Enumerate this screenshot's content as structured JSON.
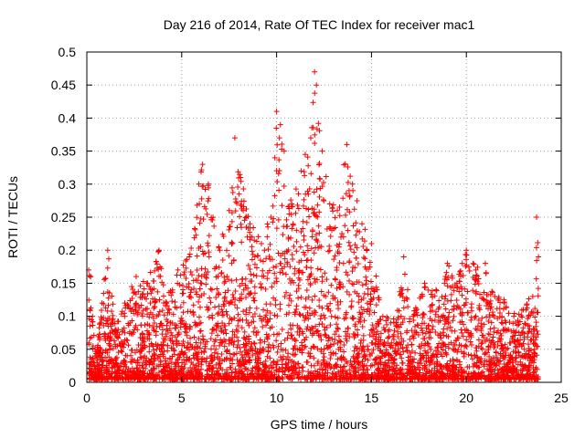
{
  "chart_data": {
    "type": "scatter",
    "title": "Day 216 of 2014, Rate Of TEC Index for receiver mac1",
    "xlabel": "GPS time / hours",
    "ylabel": "ROTI / TECUs",
    "xlim": [
      0,
      25
    ],
    "ylim": [
      0,
      0.5
    ],
    "x_ticks": [
      "0",
      "5",
      "10",
      "15",
      "20",
      "25"
    ],
    "y_ticks": [
      "0",
      "0.05",
      "0.1",
      "0.15",
      "0.2",
      "0.25",
      "0.3",
      "0.35",
      "0.4",
      "0.45",
      "0.5"
    ],
    "grid": true,
    "marker": "+",
    "color": "#ff0000",
    "series": [
      {
        "name": "ROTI",
        "note": "dense scatter; representative envelope samples (x hours, y TECU)",
        "points": [
          [
            0.1,
            0.17
          ],
          [
            0.2,
            0.16
          ],
          [
            0.3,
            0.1
          ],
          [
            0.5,
            0.04
          ],
          [
            0.8,
            0.12
          ],
          [
            1.1,
            0.2
          ],
          [
            1.5,
            0.08
          ],
          [
            2.0,
            0.12
          ],
          [
            2.6,
            0.16
          ],
          [
            3.2,
            0.15
          ],
          [
            3.8,
            0.2
          ],
          [
            4.2,
            0.12
          ],
          [
            4.8,
            0.17
          ],
          [
            5.4,
            0.19
          ],
          [
            5.9,
            0.3
          ],
          [
            6.1,
            0.33
          ],
          [
            6.4,
            0.3
          ],
          [
            7.0,
            0.2
          ],
          [
            7.5,
            0.26
          ],
          [
            7.8,
            0.37
          ],
          [
            8.1,
            0.31
          ],
          [
            8.6,
            0.24
          ],
          [
            9.2,
            0.21
          ],
          [
            9.7,
            0.25
          ],
          [
            10.0,
            0.41
          ],
          [
            10.2,
            0.39
          ],
          [
            10.4,
            0.35
          ],
          [
            10.8,
            0.27
          ],
          [
            11.3,
            0.32
          ],
          [
            11.8,
            0.37
          ],
          [
            12.0,
            0.47
          ],
          [
            12.1,
            0.45
          ],
          [
            12.4,
            0.35
          ],
          [
            12.8,
            0.27
          ],
          [
            13.2,
            0.26
          ],
          [
            13.7,
            0.36
          ],
          [
            14.0,
            0.3
          ],
          [
            14.5,
            0.24
          ],
          [
            15.0,
            0.21
          ],
          [
            15.6,
            0.1
          ],
          [
            16.3,
            0.09
          ],
          [
            16.7,
            0.19
          ],
          [
            17.2,
            0.1
          ],
          [
            17.8,
            0.15
          ],
          [
            18.4,
            0.14
          ],
          [
            19.0,
            0.18
          ],
          [
            19.5,
            0.15
          ],
          [
            20.0,
            0.2
          ],
          [
            20.5,
            0.17
          ],
          [
            21.0,
            0.18
          ],
          [
            21.5,
            0.13
          ],
          [
            22.0,
            0.12
          ],
          [
            22.5,
            0.1
          ],
          [
            23.0,
            0.11
          ],
          [
            23.5,
            0.13
          ],
          [
            23.7,
            0.25
          ],
          [
            23.8,
            0.19
          ]
        ]
      }
    ]
  }
}
